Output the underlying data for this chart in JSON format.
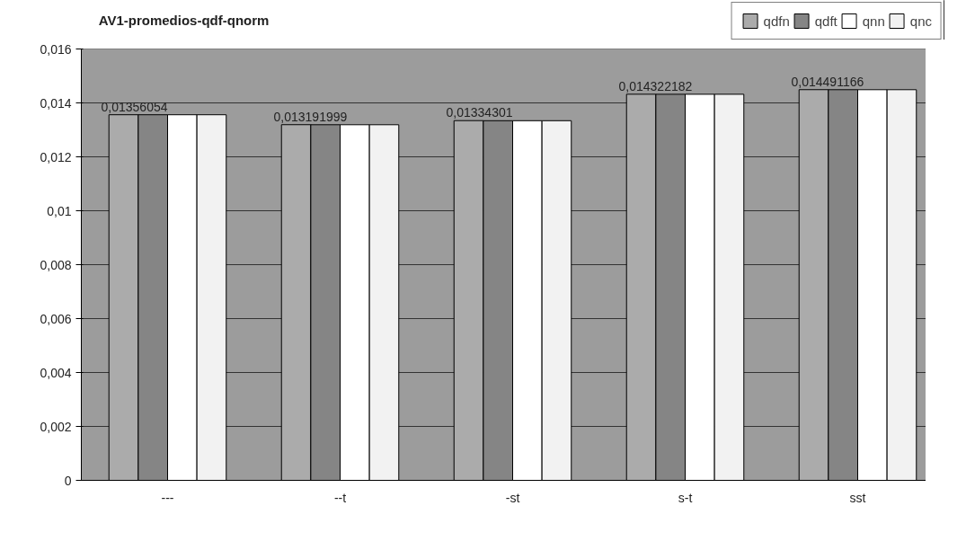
{
  "chart_data": {
    "type": "bar",
    "title": "AV1-promedios-qdf-qnorm",
    "categories": [
      "---",
      "--t",
      "-st",
      "s-t",
      "sst"
    ],
    "series": [
      {
        "name": "qdfn",
        "color": "#ababab",
        "values": [
          0.01356054,
          0.013191999,
          0.01334301,
          0.014322182,
          0.014491166
        ],
        "value_labels": [
          "0,01356054",
          "0,013191999",
          "0,01334301",
          "0,014322182",
          "0,014491166"
        ]
      },
      {
        "name": "qdft",
        "color": "#858585",
        "values": [
          0.01356,
          0.01319,
          0.01334,
          0.01432,
          0.01449
        ]
      },
      {
        "name": "qnn",
        "color": "#ffffff",
        "values": [
          0.01356,
          0.01319,
          0.01334,
          0.01432,
          0.01449
        ]
      },
      {
        "name": "qnc",
        "color": "#f2f2f2",
        "values": [
          0.01356,
          0.01319,
          0.01334,
          0.01432,
          0.01449
        ]
      }
    ],
    "ylim": [
      0,
      0.016
    ],
    "yticks": [
      0,
      {
        "value": 0.002,
        "label": "0,002"
      },
      {
        "value": 0.004,
        "label": "0,004"
      },
      {
        "value": 0.006,
        "label": "0,006"
      },
      {
        "value": 0.008,
        "label": "0,008"
      },
      {
        "value": 0.01,
        "label": "0,01"
      },
      {
        "value": 0.012,
        "label": "0,012"
      },
      {
        "value": 0.014,
        "label": "0,014"
      },
      {
        "value": 0.016,
        "label": "0,016"
      }
    ],
    "grid": "y",
    "legend": "top right"
  }
}
